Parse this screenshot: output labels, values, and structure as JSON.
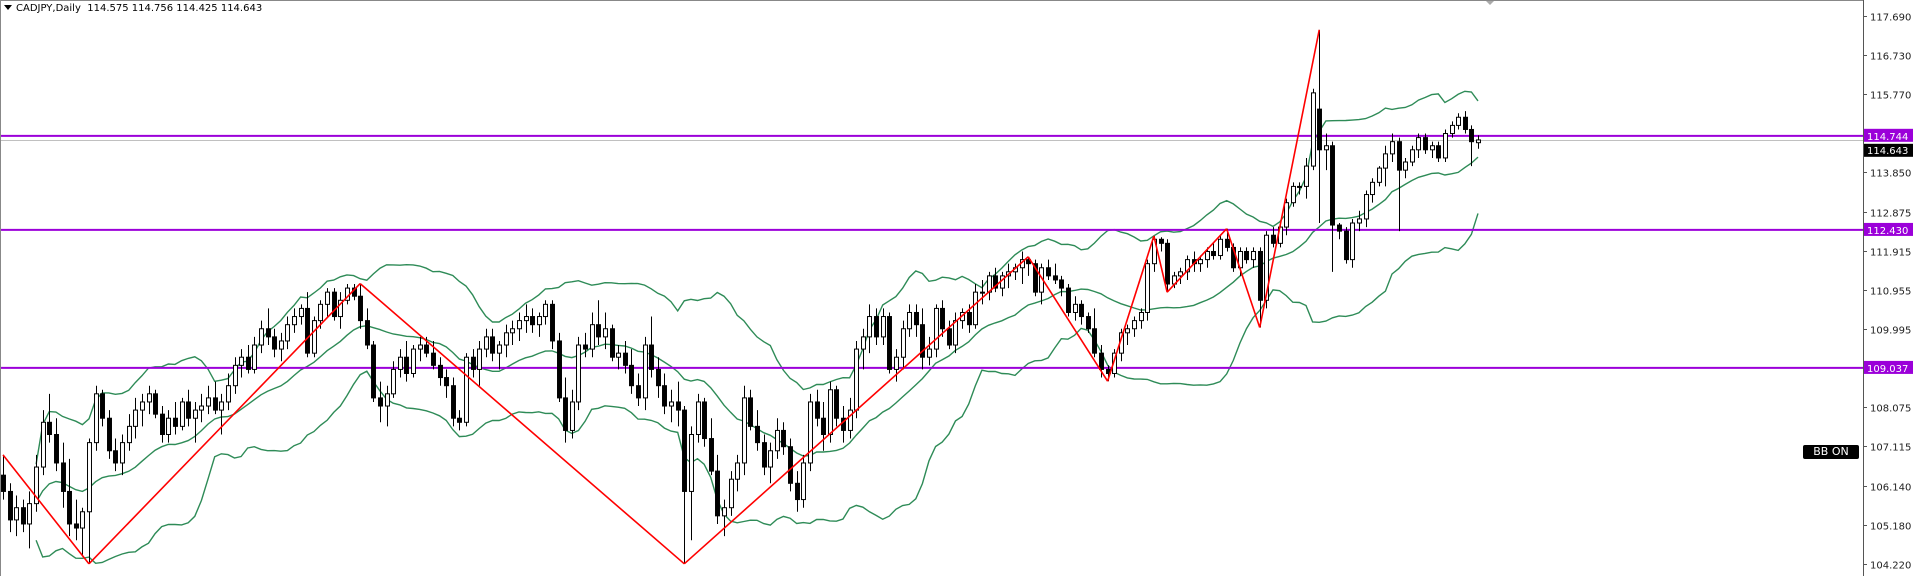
{
  "header": {
    "symbol_timeframe": "CADJPY,Daily",
    "ohlc": "114.575 114.756 114.425 114.643"
  },
  "indicator_button": "BB ON",
  "colors": {
    "level_line": "#9b00d9",
    "zigzag": "#ff0000",
    "bollinger": "#2e8b57",
    "bear_body": "#000000",
    "bull_body": "#ffffff"
  },
  "chart_data": {
    "type": "candlestick",
    "symbol": "CADJPY",
    "timeframe": "Daily",
    "ylim": [
      104.0,
      117.9
    ],
    "y_ticks": [
      "117.690",
      "116.730",
      "115.770",
      "113.850",
      "112.875",
      "111.915",
      "110.955",
      "109.995",
      "108.075",
      "107.115",
      "106.140",
      "105.180",
      "104.220"
    ],
    "levels": [
      {
        "price": 114.744,
        "label": "114.744"
      },
      {
        "price": 112.43,
        "label": "112.430"
      },
      {
        "price": 109.037,
        "label": "109.037"
      }
    ],
    "bid": {
      "price": 114.643,
      "label": "114.643"
    },
    "bollinger": {
      "period": 20,
      "deviation": 2
    },
    "zigzag": [
      {
        "price": 106.9,
        "at": "high"
      },
      {
        "price": 104.22,
        "at": "low"
      },
      {
        "price": 111.11,
        "at": "high"
      },
      {
        "price": 104.22,
        "at": "low"
      },
      {
        "price": 111.77,
        "at": "high"
      },
      {
        "price": 108.71,
        "at": "low"
      },
      {
        "price": 112.28,
        "at": "high"
      },
      {
        "price": 110.9,
        "at": "low"
      },
      {
        "price": 112.46,
        "at": "high"
      },
      {
        "price": 110.03,
        "at": "low"
      },
      {
        "price": 117.35,
        "at": "high"
      }
    ],
    "candles": [
      [
        106.4,
        106.9,
        105.8,
        106.0
      ],
      [
        106.0,
        106.2,
        105.0,
        105.3
      ],
      [
        105.3,
        105.9,
        104.9,
        105.6
      ],
      [
        105.6,
        105.8,
        105.0,
        105.2
      ],
      [
        105.2,
        106.0,
        104.6,
        105.7
      ],
      [
        105.7,
        106.9,
        105.5,
        106.6
      ],
      [
        106.6,
        108.0,
        106.4,
        107.7
      ],
      [
        107.7,
        108.4,
        107.2,
        107.4
      ],
      [
        107.4,
        107.8,
        106.5,
        106.7
      ],
      [
        106.7,
        107.2,
        105.6,
        106.0
      ],
      [
        106.0,
        106.8,
        104.9,
        105.2
      ],
      [
        105.2,
        105.8,
        104.8,
        105.1
      ],
      [
        105.1,
        105.6,
        104.4,
        105.5
      ],
      [
        105.5,
        107.3,
        104.22,
        107.2
      ],
      [
        107.2,
        108.6,
        107.0,
        108.4
      ],
      [
        108.4,
        108.5,
        107.6,
        107.8
      ],
      [
        107.8,
        108.0,
        106.8,
        107.0
      ],
      [
        107.0,
        107.3,
        106.5,
        106.7
      ],
      [
        106.7,
        107.4,
        106.4,
        107.2
      ],
      [
        107.2,
        107.9,
        107.0,
        107.6
      ],
      [
        107.6,
        108.3,
        107.3,
        108.0
      ],
      [
        108.0,
        108.4,
        107.6,
        108.2
      ],
      [
        108.2,
        108.6,
        107.9,
        108.4
      ],
      [
        108.4,
        108.5,
        107.8,
        107.9
      ],
      [
        107.9,
        108.1,
        107.2,
        107.4
      ],
      [
        107.4,
        108.0,
        107.2,
        107.8
      ],
      [
        107.8,
        108.2,
        107.4,
        107.6
      ],
      [
        107.6,
        108.3,
        107.5,
        108.2
      ],
      [
        108.2,
        108.5,
        107.6,
        107.8
      ],
      [
        107.8,
        108.2,
        107.2,
        108.0
      ],
      [
        108.0,
        108.4,
        107.7,
        108.1
      ],
      [
        108.1,
        108.6,
        107.9,
        108.3
      ],
      [
        108.3,
        108.7,
        107.9,
        108.0
      ],
      [
        108.0,
        108.4,
        107.4,
        108.2
      ],
      [
        108.2,
        108.9,
        108.0,
        108.6
      ],
      [
        108.6,
        109.3,
        108.4,
        109.1
      ],
      [
        109.1,
        109.5,
        108.8,
        109.3
      ],
      [
        109.3,
        109.6,
        108.9,
        109.0
      ],
      [
        109.0,
        109.8,
        108.9,
        109.6
      ],
      [
        109.6,
        110.2,
        109.4,
        110.0
      ],
      [
        110.0,
        110.5,
        109.6,
        109.8
      ],
      [
        109.8,
        110.0,
        109.3,
        109.5
      ],
      [
        109.5,
        109.9,
        109.2,
        109.7
      ],
      [
        109.7,
        110.3,
        109.5,
        110.1
      ],
      [
        110.1,
        110.5,
        109.9,
        110.3
      ],
      [
        110.3,
        110.6,
        110.1,
        110.5
      ],
      [
        110.5,
        110.9,
        109.3,
        109.4
      ],
      [
        109.4,
        110.3,
        109.3,
        110.2
      ],
      [
        110.2,
        110.7,
        110.0,
        110.6
      ],
      [
        110.6,
        111.0,
        110.3,
        110.9
      ],
      [
        110.9,
        111.0,
        110.2,
        110.3
      ],
      [
        110.3,
        110.9,
        110.0,
        110.7
      ],
      [
        110.7,
        111.1,
        110.6,
        111.0
      ],
      [
        111.0,
        111.1,
        110.7,
        110.8
      ],
      [
        110.8,
        111.11,
        110.0,
        110.2
      ],
      [
        110.2,
        110.5,
        109.5,
        109.6
      ],
      [
        109.6,
        109.7,
        108.2,
        108.3
      ],
      [
        108.3,
        108.7,
        107.7,
        108.1
      ],
      [
        108.1,
        108.6,
        107.6,
        108.4
      ],
      [
        108.4,
        109.2,
        108.3,
        109.0
      ],
      [
        109.0,
        109.5,
        108.8,
        109.3
      ],
      [
        109.3,
        109.7,
        108.7,
        108.9
      ],
      [
        108.9,
        109.6,
        108.8,
        109.5
      ],
      [
        109.5,
        109.8,
        109.2,
        109.6
      ],
      [
        109.6,
        109.8,
        109.3,
        109.4
      ],
      [
        109.4,
        109.7,
        109.0,
        109.1
      ],
      [
        109.1,
        109.3,
        108.6,
        108.8
      ],
      [
        108.8,
        109.0,
        108.3,
        108.6
      ],
      [
        108.6,
        108.8,
        107.6,
        107.8
      ],
      [
        107.8,
        108.0,
        107.5,
        107.7
      ],
      [
        107.7,
        109.4,
        107.6,
        109.3
      ],
      [
        109.3,
        109.5,
        108.8,
        109.0
      ],
      [
        109.0,
        109.7,
        108.6,
        109.5
      ],
      [
        109.5,
        110.0,
        109.3,
        109.8
      ],
      [
        109.8,
        110.0,
        109.2,
        109.4
      ],
      [
        109.4,
        109.7,
        109.0,
        109.6
      ],
      [
        109.6,
        110.1,
        109.3,
        109.9
      ],
      [
        109.9,
        110.2,
        109.6,
        110.0
      ],
      [
        110.0,
        110.4,
        109.7,
        110.2
      ],
      [
        110.2,
        110.6,
        109.9,
        110.3
      ],
      [
        110.3,
        110.5,
        109.9,
        110.1
      ],
      [
        110.1,
        110.4,
        109.8,
        110.3
      ],
      [
        110.3,
        110.7,
        110.1,
        110.6
      ],
      [
        110.6,
        110.7,
        109.5,
        109.7
      ],
      [
        109.7,
        109.9,
        108.2,
        108.3
      ],
      [
        108.3,
        108.8,
        107.2,
        107.5
      ],
      [
        107.5,
        108.5,
        107.3,
        108.2
      ],
      [
        108.2,
        109.8,
        108.0,
        109.6
      ],
      [
        109.6,
        109.9,
        109.3,
        109.5
      ],
      [
        109.5,
        110.4,
        109.3,
        110.1
      ],
      [
        110.1,
        110.7,
        109.6,
        109.8
      ],
      [
        109.8,
        110.4,
        109.5,
        110.0
      ],
      [
        110.0,
        110.1,
        109.2,
        109.3
      ],
      [
        109.3,
        109.6,
        109.0,
        109.4
      ],
      [
        109.4,
        109.7,
        108.9,
        109.1
      ],
      [
        109.1,
        109.5,
        108.4,
        108.6
      ],
      [
        108.6,
        108.9,
        108.1,
        108.3
      ],
      [
        108.3,
        109.8,
        108.0,
        109.6
      ],
      [
        109.6,
        110.3,
        108.8,
        109.0
      ],
      [
        109.0,
        109.3,
        108.3,
        108.6
      ],
      [
        108.6,
        108.9,
        107.9,
        108.1
      ],
      [
        108.1,
        108.5,
        107.7,
        108.2
      ],
      [
        108.2,
        108.7,
        107.6,
        108.0
      ],
      [
        108.0,
        108.1,
        104.22,
        106.0
      ],
      [
        106.0,
        107.6,
        104.8,
        107.4
      ],
      [
        107.4,
        108.4,
        107.2,
        108.2
      ],
      [
        108.2,
        108.3,
        107.1,
        107.3
      ],
      [
        107.3,
        107.8,
        106.4,
        106.5
      ],
      [
        106.5,
        106.9,
        105.2,
        105.4
      ],
      [
        105.4,
        105.8,
        104.9,
        105.6
      ],
      [
        105.6,
        106.5,
        105.4,
        106.3
      ],
      [
        106.3,
        106.9,
        106.0,
        106.7
      ],
      [
        106.7,
        108.6,
        106.4,
        108.3
      ],
      [
        108.3,
        108.5,
        107.5,
        107.6
      ],
      [
        107.6,
        108.0,
        107.0,
        107.2
      ],
      [
        107.2,
        107.4,
        106.4,
        106.6
      ],
      [
        106.6,
        107.2,
        106.2,
        107.0
      ],
      [
        107.0,
        107.8,
        106.8,
        107.5
      ],
      [
        107.5,
        107.7,
        106.9,
        107.1
      ],
      [
        107.1,
        107.3,
        106.0,
        106.2
      ],
      [
        106.2,
        106.5,
        105.5,
        105.8
      ],
      [
        105.8,
        106.9,
        105.6,
        106.7
      ],
      [
        106.7,
        108.4,
        106.5,
        108.2
      ],
      [
        108.2,
        108.5,
        107.6,
        107.8
      ],
      [
        107.8,
        108.2,
        107.0,
        107.4
      ],
      [
        107.4,
        108.7,
        107.2,
        108.5
      ],
      [
        108.5,
        108.6,
        107.6,
        107.8
      ],
      [
        107.8,
        108.1,
        107.2,
        107.5
      ],
      [
        107.5,
        108.3,
        107.3,
        108.0
      ],
      [
        108.0,
        109.7,
        107.8,
        109.5
      ],
      [
        109.5,
        110.0,
        109.0,
        109.8
      ],
      [
        109.8,
        110.6,
        109.4,
        110.3
      ],
      [
        110.3,
        110.5,
        109.6,
        109.8
      ],
      [
        109.8,
        110.5,
        109.6,
        110.3
      ],
      [
        110.3,
        110.4,
        108.9,
        109.0
      ],
      [
        109.0,
        109.5,
        108.7,
        109.3
      ],
      [
        109.3,
        110.2,
        109.0,
        110.0
      ],
      [
        110.0,
        110.6,
        109.8,
        110.4
      ],
      [
        110.4,
        110.6,
        109.8,
        110.1
      ],
      [
        110.1,
        110.5,
        109.0,
        109.3
      ],
      [
        109.3,
        109.8,
        109.1,
        109.5
      ],
      [
        109.5,
        110.6,
        109.3,
        110.5
      ],
      [
        110.5,
        110.7,
        109.8,
        110.0
      ],
      [
        110.0,
        110.2,
        109.5,
        109.6
      ],
      [
        109.6,
        110.4,
        109.4,
        110.2
      ],
      [
        110.2,
        110.5,
        110.0,
        110.4
      ],
      [
        110.4,
        110.6,
        109.9,
        110.1
      ],
      [
        110.1,
        111.1,
        110.0,
        110.9
      ],
      [
        110.9,
        111.2,
        110.6,
        110.9
      ],
      [
        110.9,
        111.4,
        110.7,
        111.3
      ],
      [
        111.3,
        111.5,
        110.9,
        111.0
      ],
      [
        111.0,
        111.4,
        110.8,
        111.3
      ],
      [
        111.3,
        111.6,
        111.0,
        111.4
      ],
      [
        111.4,
        111.6,
        111.2,
        111.5
      ],
      [
        111.5,
        111.9,
        111.1,
        111.7
      ],
      [
        111.7,
        111.77,
        111.3,
        111.6
      ],
      [
        111.6,
        111.7,
        110.8,
        110.9
      ],
      [
        110.9,
        111.6,
        110.6,
        111.5
      ],
      [
        111.5,
        111.7,
        111.2,
        111.3
      ],
      [
        111.3,
        111.6,
        111.1,
        111.2
      ],
      [
        111.2,
        111.3,
        110.8,
        111.0
      ],
      [
        111.0,
        111.1,
        110.3,
        110.4
      ],
      [
        110.4,
        110.8,
        110.2,
        110.6
      ],
      [
        110.6,
        110.7,
        110.1,
        110.3
      ],
      [
        110.3,
        110.4,
        109.9,
        110.0
      ],
      [
        110.0,
        110.5,
        109.3,
        109.4
      ],
      [
        109.4,
        109.6,
        108.8,
        109.0
      ],
      [
        109.0,
        109.1,
        108.71,
        108.9
      ],
      [
        108.9,
        109.5,
        108.8,
        109.4
      ],
      [
        109.4,
        110.0,
        109.2,
        109.9
      ],
      [
        109.9,
        110.1,
        109.6,
        110.0
      ],
      [
        110.0,
        110.3,
        109.8,
        110.2
      ],
      [
        110.2,
        110.5,
        110.0,
        110.4
      ],
      [
        110.4,
        111.7,
        110.2,
        111.6
      ],
      [
        111.6,
        112.28,
        111.4,
        112.2
      ],
      [
        112.2,
        112.25,
        111.9,
        112.1
      ],
      [
        112.1,
        112.2,
        110.9,
        111.1
      ],
      [
        111.1,
        111.4,
        111.0,
        111.3
      ],
      [
        111.3,
        111.5,
        111.1,
        111.4
      ],
      [
        111.4,
        111.8,
        111.2,
        111.7
      ],
      [
        111.7,
        111.9,
        111.4,
        111.6
      ],
      [
        111.6,
        111.8,
        111.4,
        111.7
      ],
      [
        111.7,
        112.0,
        111.5,
        111.9
      ],
      [
        111.9,
        112.1,
        111.7,
        111.8
      ],
      [
        111.8,
        112.3,
        111.7,
        112.2
      ],
      [
        112.2,
        112.46,
        111.9,
        112.0
      ],
      [
        112.0,
        112.1,
        111.4,
        111.5
      ],
      [
        111.5,
        112.0,
        111.3,
        111.9
      ],
      [
        111.9,
        112.0,
        111.6,
        111.7
      ],
      [
        111.7,
        112.0,
        111.5,
        111.9
      ],
      [
        111.9,
        112.0,
        110.03,
        110.7
      ],
      [
        110.7,
        112.4,
        110.5,
        112.3
      ],
      [
        112.3,
        112.5,
        112.0,
        112.1
      ],
      [
        112.1,
        112.6,
        112.0,
        112.5
      ],
      [
        112.5,
        113.2,
        112.3,
        113.1
      ],
      [
        113.1,
        113.6,
        113.0,
        113.5
      ],
      [
        113.5,
        113.6,
        113.3,
        113.5
      ],
      [
        113.5,
        114.2,
        113.2,
        114.0
      ],
      [
        114.0,
        115.9,
        113.9,
        115.8
      ],
      [
        115.4,
        117.35,
        112.6,
        114.4
      ],
      [
        114.4,
        114.8,
        113.9,
        114.5
      ],
      [
        114.5,
        114.6,
        111.4,
        112.55
      ],
      [
        112.55,
        112.6,
        112.2,
        112.4
      ],
      [
        112.4,
        112.5,
        111.6,
        111.7
      ],
      [
        111.7,
        112.7,
        111.5,
        112.6
      ],
      [
        112.6,
        112.9,
        112.4,
        112.7
      ],
      [
        112.7,
        113.4,
        112.5,
        113.3
      ],
      [
        113.3,
        113.7,
        113.1,
        113.6
      ],
      [
        113.6,
        114.0,
        113.5,
        113.95
      ],
      [
        113.95,
        114.5,
        113.5,
        114.3
      ],
      [
        114.3,
        114.8,
        114.1,
        114.6
      ],
      [
        114.6,
        114.7,
        112.4,
        113.9
      ],
      [
        113.9,
        114.2,
        113.7,
        114.1
      ],
      [
        114.1,
        114.5,
        114.0,
        114.4
      ],
      [
        114.4,
        114.8,
        114.2,
        114.7
      ],
      [
        114.7,
        114.8,
        114.3,
        114.4
      ],
      [
        114.4,
        114.6,
        114.2,
        114.5
      ],
      [
        114.5,
        114.6,
        114.1,
        114.2
      ],
      [
        114.2,
        114.9,
        114.1,
        114.8
      ],
      [
        114.8,
        115.1,
        114.7,
        115.0
      ],
      [
        115.0,
        115.3,
        114.9,
        115.2
      ],
      [
        115.2,
        115.35,
        114.8,
        114.9
      ],
      [
        114.9,
        115.0,
        114.0,
        114.6
      ],
      [
        114.575,
        114.756,
        114.425,
        114.643
      ]
    ]
  }
}
